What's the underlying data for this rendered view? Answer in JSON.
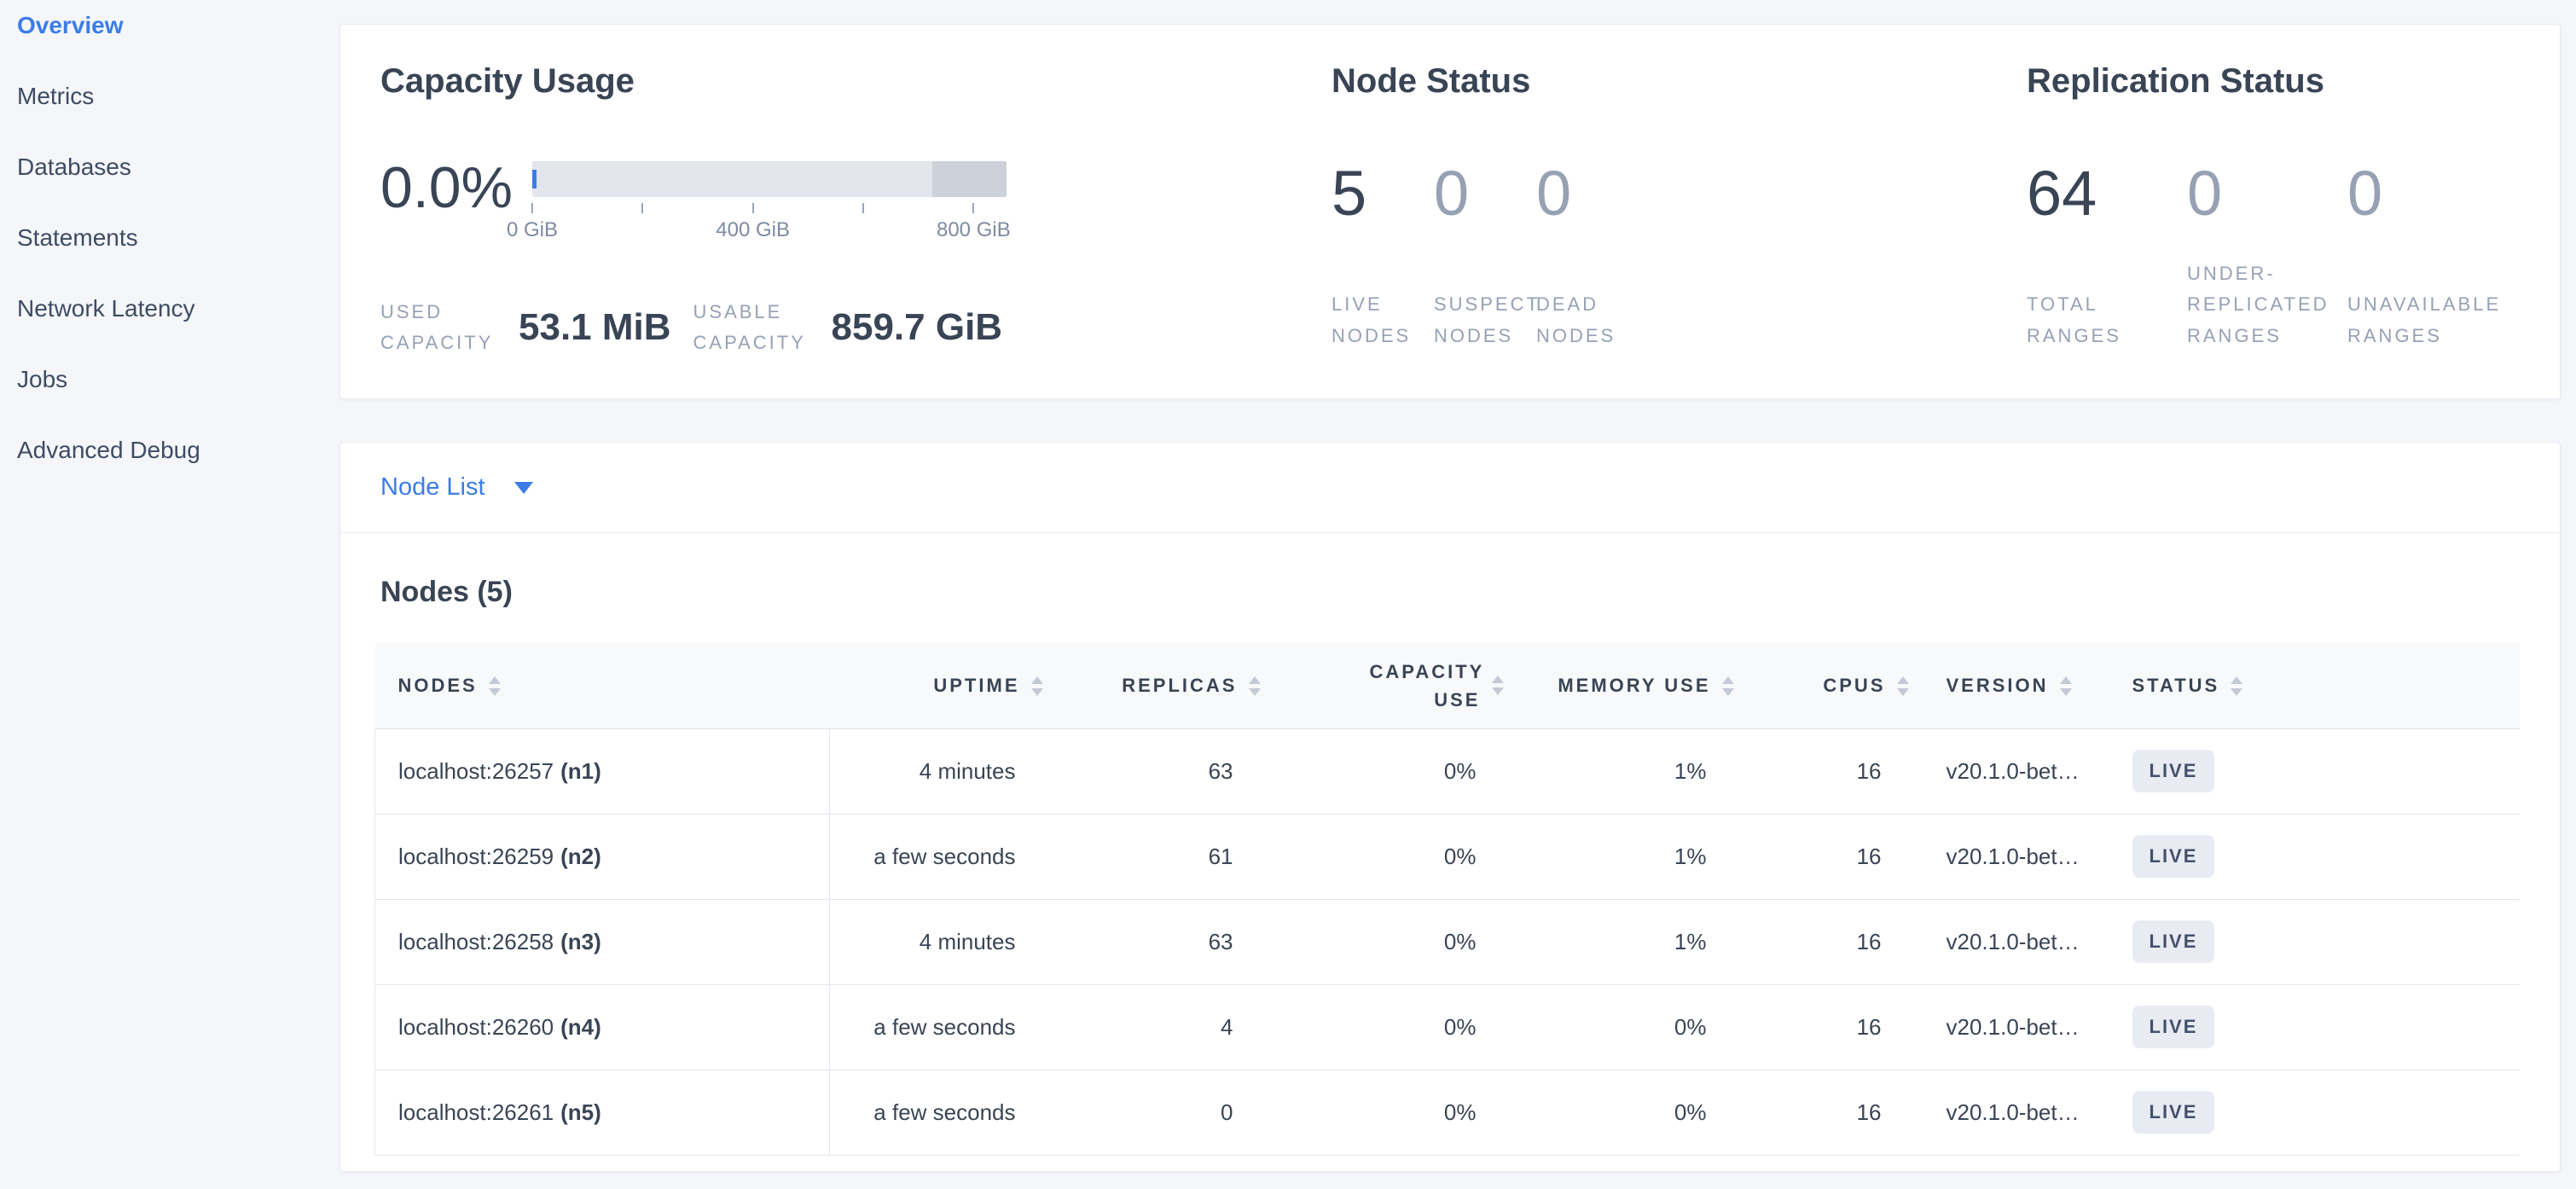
{
  "sidebar": {
    "items": [
      {
        "label": "Overview",
        "active": true
      },
      {
        "label": "Metrics",
        "active": false
      },
      {
        "label": "Databases",
        "active": false
      },
      {
        "label": "Statements",
        "active": false
      },
      {
        "label": "Network Latency",
        "active": false
      },
      {
        "label": "Jobs",
        "active": false
      },
      {
        "label": "Advanced Debug",
        "active": false
      }
    ]
  },
  "capacity": {
    "title": "Capacity Usage",
    "percent_used": "0.0%",
    "axis_tick_labels": [
      "0 GiB",
      "400 GiB",
      "800 GiB"
    ],
    "axis_tick_values_gib": [
      0,
      200,
      400,
      600,
      800
    ],
    "stats": [
      {
        "label": "USED CAPACITY",
        "value": "53.1 MiB"
      },
      {
        "label": "USABLE CAPACITY",
        "value": "859.7 GiB"
      }
    ]
  },
  "node_status": {
    "title": "Node Status",
    "stats": [
      {
        "value": "5",
        "label": "LIVE NODES",
        "emphasis": true
      },
      {
        "value": "0",
        "label": "SUSPECT NODES",
        "emphasis": false
      },
      {
        "value": "0",
        "label": "DEAD NODES",
        "emphasis": false
      }
    ]
  },
  "replication_status": {
    "title": "Replication Status",
    "stats": [
      {
        "value": "64",
        "label": "TOTAL RANGES",
        "emphasis": true
      },
      {
        "value": "0",
        "label": "UNDER-REPLICATED RANGES",
        "emphasis": false
      },
      {
        "value": "0",
        "label": "UNAVAILABLE RANGES",
        "emphasis": false
      }
    ]
  },
  "node_list": {
    "selector_label": "Node List",
    "heading": "Nodes (5)",
    "columns": [
      "NODES",
      "UPTIME",
      "REPLICAS",
      "CAPACITY USE",
      "MEMORY USE",
      "CPUS",
      "VERSION",
      "STATUS"
    ],
    "rows": [
      {
        "node_address": "localhost:26257",
        "node_id": "(n1)",
        "uptime": "4 minutes",
        "replicas": "63",
        "capacity_use": "0%",
        "memory_use": "1%",
        "cpus": "16",
        "version": "v20.1.0-bet…",
        "status": "LIVE"
      },
      {
        "node_address": "localhost:26259",
        "node_id": "(n2)",
        "uptime": "a few seconds",
        "replicas": "61",
        "capacity_use": "0%",
        "memory_use": "1%",
        "cpus": "16",
        "version": "v20.1.0-bet…",
        "status": "LIVE"
      },
      {
        "node_address": "localhost:26258",
        "node_id": "(n3)",
        "uptime": "4 minutes",
        "replicas": "63",
        "capacity_use": "0%",
        "memory_use": "1%",
        "cpus": "16",
        "version": "v20.1.0-bet…",
        "status": "LIVE"
      },
      {
        "node_address": "localhost:26260",
        "node_id": "(n4)",
        "uptime": "a few seconds",
        "replicas": "4",
        "capacity_use": "0%",
        "memory_use": "0%",
        "cpus": "16",
        "version": "v20.1.0-bet…",
        "status": "LIVE"
      },
      {
        "node_address": "localhost:26261",
        "node_id": "(n5)",
        "uptime": "a few seconds",
        "replicas": "0",
        "capacity_use": "0%",
        "memory_use": "0%",
        "cpus": "16",
        "version": "v20.1.0-bet…",
        "status": "LIVE"
      }
    ]
  },
  "colors": {
    "accent_blue": "#3b7ce8",
    "navy": "#394455",
    "muted_label": "#95a1b5",
    "bar_track": "#e3e6ed",
    "bar_other_segment": "#ccd1da",
    "badge_bg": "#e8ebf2"
  }
}
